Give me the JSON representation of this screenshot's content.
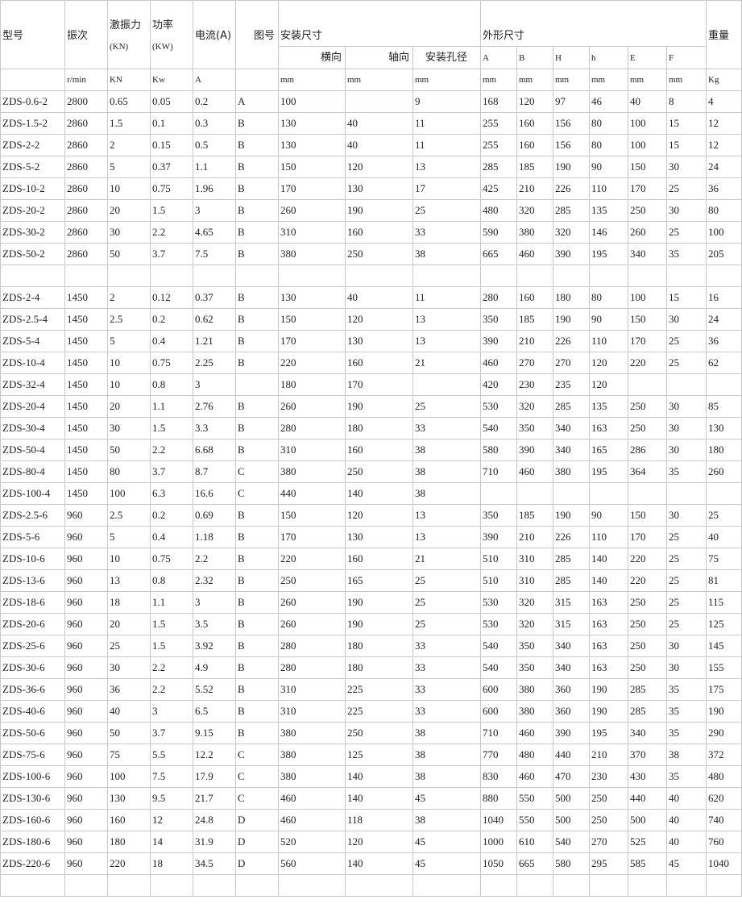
{
  "header": {
    "row1": [
      "型号",
      "振次",
      [
        "激振力",
        "(KN)"
      ],
      [
        "功率",
        "(KW)"
      ],
      "电流(A)",
      "图号",
      "安装尺寸",
      "外形尺寸",
      "重量"
    ],
    "row2": [
      "横向",
      "轴向",
      "安装孔径",
      "A",
      "B",
      "H",
      "h",
      "E",
      "F"
    ]
  },
  "units": [
    null,
    "r/min",
    "KN",
    "Kw",
    "A",
    null,
    "mm",
    "mm",
    "mm",
    "mm",
    "mm",
    "mm",
    "mm",
    "mm",
    "mm",
    "Kg"
  ],
  "sections": [
    [
      [
        "ZDS-0.6-2",
        "2800",
        "0.65",
        "0.05",
        "0.2",
        "A",
        "100",
        null,
        "9",
        "168",
        "120",
        "97",
        "46",
        "40",
        "8",
        "4"
      ],
      [
        "ZDS-1.5-2",
        "2860",
        "1.5",
        "0.1",
        "0.3",
        "B",
        "130",
        "40",
        "11",
        "255",
        "160",
        "156",
        "80",
        "100",
        "15",
        "12"
      ],
      [
        "ZDS-2-2",
        "2860",
        "2",
        "0.15",
        "0.5",
        "B",
        "130",
        "40",
        "11",
        "255",
        "160",
        "156",
        "80",
        "100",
        "15",
        "12"
      ],
      [
        "ZDS-5-2",
        "2860",
        "5",
        "0.37",
        "1.1",
        "B",
        "150",
        "120",
        "13",
        "285",
        "185",
        "190",
        "90",
        "150",
        "30",
        "24"
      ],
      [
        "ZDS-10-2",
        "2860",
        "10",
        "0.75",
        "1.96",
        "B",
        "170",
        "130",
        "17",
        "425",
        "210",
        "226",
        "110",
        "170",
        "25",
        "36"
      ],
      [
        "ZDS-20-2",
        "2860",
        "20",
        "1.5",
        "3",
        "B",
        "260",
        "190",
        "25",
        "480",
        "320",
        "285",
        "135",
        "250",
        "30",
        "80"
      ],
      [
        "ZDS-30-2",
        "2860",
        "30",
        "2.2",
        "4.65",
        "B",
        "310",
        "160",
        "33",
        "590",
        "380",
        "320",
        "146",
        "260",
        "25",
        "100"
      ],
      [
        "ZDS-50-2",
        "2860",
        "50",
        "3.7",
        "7.5",
        "B",
        "380",
        "250",
        "38",
        "665",
        "460",
        "390",
        "195",
        "340",
        "35",
        "205"
      ]
    ],
    [
      [
        "ZDS-2-4",
        "1450",
        "2",
        "0.12",
        "0.37",
        "B",
        "130",
        "40",
        "11",
        "280",
        "160",
        "180",
        "80",
        "100",
        "15",
        "16"
      ],
      [
        "ZDS-2.5-4",
        "1450",
        "2.5",
        "0.2",
        "0.62",
        "B",
        "150",
        "120",
        "13",
        "350",
        "185",
        "190",
        "90",
        "150",
        "30",
        "24"
      ],
      [
        "ZDS-5-4",
        "1450",
        "5",
        "0.4",
        "1.21",
        "B",
        "170",
        "130",
        "13",
        "390",
        "210",
        "226",
        "110",
        "170",
        "25",
        "36"
      ],
      [
        "ZDS-10-4",
        "1450",
        "10",
        "0.75",
        "2.25",
        "B",
        "220",
        "160",
        "21",
        "460",
        "270",
        "270",
        "120",
        "220",
        "25",
        "62"
      ],
      [
        "ZDS-32-4",
        "1450",
        "10",
        "0.8",
        "3",
        null,
        "180",
        "170",
        null,
        "420",
        "230",
        "235",
        "120",
        null,
        null,
        null
      ],
      [
        "ZDS-20-4",
        "1450",
        "20",
        "1.1",
        "2.76",
        "B",
        "260",
        "190",
        "25",
        "530",
        "320",
        "285",
        "135",
        "250",
        "30",
        "85"
      ],
      [
        "ZDS-30-4",
        "1450",
        "30",
        "1.5",
        "3.3",
        "B",
        "280",
        "180",
        "33",
        "540",
        "350",
        "340",
        "163",
        "250",
        "30",
        "130"
      ],
      [
        "ZDS-50-4",
        "1450",
        "50",
        "2.2",
        "6.68",
        "B",
        "310",
        "160",
        "38",
        "580",
        "390",
        "340",
        "165",
        "286",
        "30",
        "180"
      ],
      [
        "ZDS-80-4",
        "1450",
        "80",
        "3.7",
        "8.7",
        "C",
        "380",
        "250",
        "38",
        "710",
        "460",
        "380",
        "195",
        "364",
        "35",
        "260"
      ],
      [
        "ZDS-100-4",
        "1450",
        "100",
        "6.3",
        "16.6",
        "C",
        "440",
        "140",
        "38",
        null,
        null,
        null,
        null,
        null,
        null,
        null
      ],
      [
        "ZDS-2.5-6",
        "960",
        "2.5",
        "0.2",
        "0.69",
        "B",
        "150",
        "120",
        "13",
        "350",
        "185",
        "190",
        "90",
        "150",
        "30",
        "25"
      ],
      [
        "ZDS-5-6",
        "960",
        "5",
        "0.4",
        "1.18",
        "B",
        "170",
        "130",
        "13",
        "390",
        "210",
        "226",
        "110",
        "170",
        "25",
        "40"
      ],
      [
        "ZDS-10-6",
        "960",
        "10",
        "0.75",
        "2.2",
        "B",
        "220",
        "160",
        "21",
        "510",
        "310",
        "285",
        "140",
        "220",
        "25",
        "75"
      ],
      [
        "ZDS-13-6",
        "960",
        "13",
        "0.8",
        "2.32",
        "B",
        "250",
        "165",
        "25",
        "510",
        "310",
        "285",
        "140",
        "220",
        "25",
        "81"
      ],
      [
        "ZDS-18-6",
        "960",
        "18",
        "1.1",
        "3",
        "B",
        "260",
        "190",
        "25",
        "530",
        "320",
        "315",
        "163",
        "250",
        "25",
        "115"
      ],
      [
        "ZDS-20-6",
        "960",
        "20",
        "1.5",
        "3.5",
        "B",
        "260",
        "190",
        "25",
        "530",
        "320",
        "315",
        "163",
        "250",
        "25",
        "125"
      ],
      [
        "ZDS-25-6",
        "960",
        "25",
        "1.5",
        "3.92",
        "B",
        "280",
        "180",
        "33",
        "540",
        "350",
        "340",
        "163",
        "250",
        "30",
        "145"
      ],
      [
        "ZDS-30-6",
        "960",
        "30",
        "2.2",
        "4.9",
        "B",
        "280",
        "180",
        "33",
        "540",
        "350",
        "340",
        "163",
        "250",
        "30",
        "155"
      ],
      [
        "ZDS-36-6",
        "960",
        "36",
        "2.2",
        "5.52",
        "B",
        "310",
        "225",
        "33",
        "600",
        "380",
        "360",
        "190",
        "285",
        "35",
        "175"
      ],
      [
        "ZDS-40-6",
        "960",
        "40",
        "3",
        "6.5",
        "B",
        "310",
        "225",
        "33",
        "600",
        "380",
        "360",
        "190",
        "285",
        "35",
        "190"
      ],
      [
        "ZDS-50-6",
        "960",
        "50",
        "3.7",
        "9.15",
        "B",
        "380",
        "250",
        "38",
        "710",
        "460",
        "390",
        "195",
        "340",
        "35",
        "290"
      ],
      [
        "ZDS-75-6",
        "960",
        "75",
        "5.5",
        "12.2",
        "C",
        "380",
        "125",
        "38",
        "770",
        "480",
        "440",
        "210",
        "370",
        "38",
        "372"
      ],
      [
        "ZDS-100-6",
        "960",
        "100",
        "7.5",
        "17.9",
        "C",
        "380",
        "140",
        "38",
        "830",
        "460",
        "470",
        "230",
        "430",
        "35",
        "480"
      ],
      [
        "ZDS-130-6",
        "960",
        "130",
        "9.5",
        "21.7",
        "C",
        "460",
        "140",
        "45",
        "880",
        "550",
        "500",
        "250",
        "440",
        "40",
        "620"
      ],
      [
        "ZDS-160-6",
        "960",
        "160",
        "12",
        "24.8",
        "D",
        "460",
        "118",
        "38",
        "1040",
        "550",
        "500",
        "250",
        "500",
        "40",
        "740"
      ],
      [
        "ZDS-180-6",
        "960",
        "180",
        "14",
        "31.9",
        "D",
        "520",
        "120",
        "45",
        "1000",
        "610",
        "540",
        "270",
        "525",
        "40",
        "760"
      ],
      [
        "ZDS-220-6",
        "960",
        "220",
        "18",
        "34.5",
        "D",
        "560",
        "140",
        "45",
        "1050",
        "665",
        "580",
        "295",
        "585",
        "45",
        "1040"
      ]
    ]
  ]
}
